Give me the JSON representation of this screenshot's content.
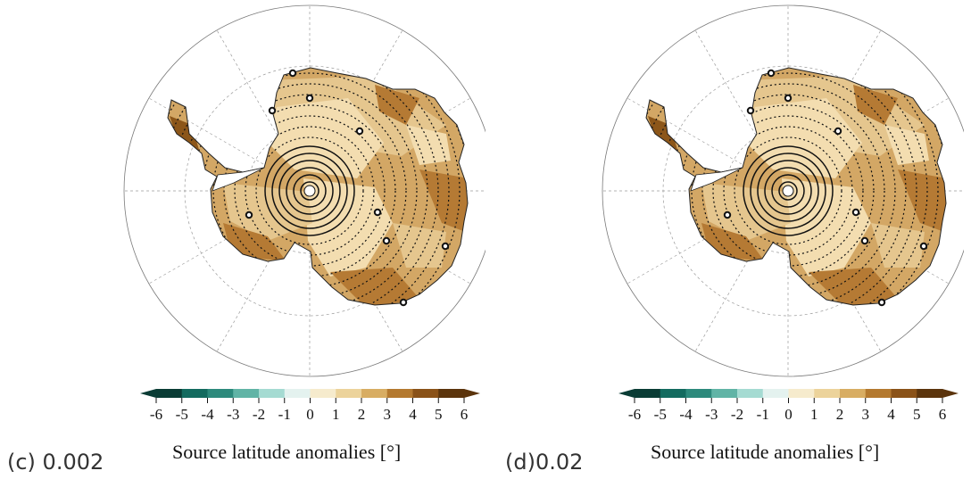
{
  "panels": [
    {
      "id": "c",
      "label": "(c) 0.002",
      "colorbar_title": "Source latitude anomalies [°]"
    },
    {
      "id": "d",
      "label": "(d)0.02",
      "colorbar_title": "Source latitude anomalies [°]"
    }
  ],
  "colorbar": {
    "ticks": [
      "-6",
      "-5",
      "-4",
      "-3",
      "-2",
      "-1",
      "0",
      "1",
      "2",
      "3",
      "4",
      "5",
      "6"
    ],
    "extend": "both",
    "colors": [
      "#0a3c35",
      "#136b5f",
      "#2d8a7c",
      "#61b4a6",
      "#a5dbd2",
      "#e4f2ef",
      "#f6ebcd",
      "#ecd39b",
      "#d8ad63",
      "#b4792f",
      "#8a5218",
      "#5b340c"
    ]
  },
  "map": {
    "projection": "south-polar-stereographic",
    "land_colors": [
      "#f3ddb0",
      "#e5c68e",
      "#d3a765",
      "#b57a34",
      "#8c5619"
    ],
    "site_marker": "circle"
  }
}
